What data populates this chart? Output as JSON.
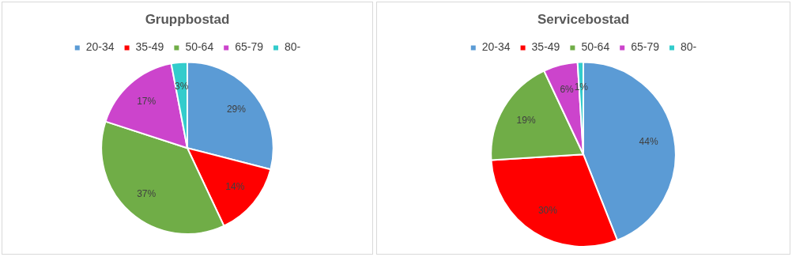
{
  "chart_data": [
    {
      "type": "pie",
      "title": "Gruppbostad",
      "categories": [
        "20-34",
        "35-49",
        "50-64",
        "65-79",
        "80-"
      ],
      "values": [
        29,
        14,
        37,
        17,
        3
      ],
      "value_labels": [
        "29%",
        "14%",
        "37%",
        "17%",
        "3%"
      ],
      "colors": [
        "#5b9bd5",
        "#ff0000",
        "#70ad47",
        "#cc44cc",
        "#33cccc"
      ],
      "legend": "top"
    },
    {
      "type": "pie",
      "title": "Servicebostad",
      "categories": [
        "20-34",
        "35-49",
        "50-64",
        "65-79",
        "80-"
      ],
      "values": [
        44,
        30,
        19,
        6,
        1
      ],
      "value_labels": [
        "44%",
        "30%",
        "19%",
        "6%",
        "1%"
      ],
      "colors": [
        "#5b9bd5",
        "#ff0000",
        "#70ad47",
        "#cc44cc",
        "#33cccc"
      ],
      "legend": "top"
    }
  ]
}
